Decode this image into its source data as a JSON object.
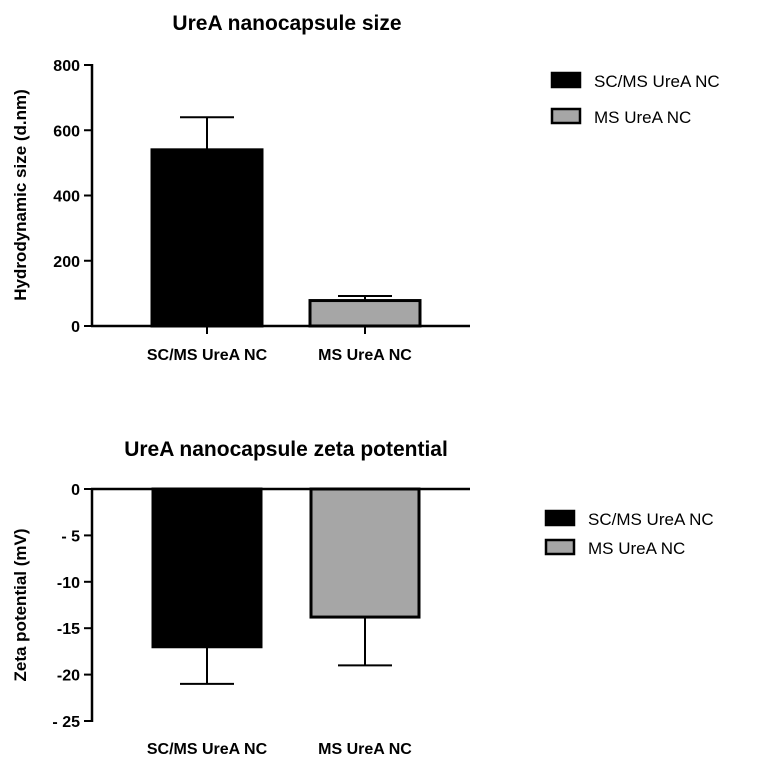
{
  "chart_data": [
    {
      "type": "bar",
      "title": "UreA nanocapsule size",
      "ylabel": "Hydrodynamic size (d.nm)",
      "xlabel": "",
      "categories": [
        "SC/MS UreA NC",
        "MS UreA NC"
      ],
      "values": [
        540,
        78
      ],
      "error_bars": [
        100,
        14
      ],
      "error_direction": "up",
      "colors": [
        "#000000",
        "#a6a6a6"
      ],
      "ylim": [
        0,
        800
      ],
      "yticks": [
        0,
        200,
        400,
        600,
        800
      ],
      "ytick_labels": [
        "0",
        "200",
        "400",
        "600",
        "800"
      ],
      "legend": [
        "SC/MS UreA NC",
        "MS UreA NC"
      ],
      "legend_position": "right",
      "grid": false
    },
    {
      "type": "bar",
      "title": "UreA nanocapsule zeta potential",
      "ylabel": "Zeta potential (mV)",
      "xlabel": "",
      "categories": [
        "SC/MS UreA NC",
        "MS UreA NC"
      ],
      "values": [
        -17,
        -13.8
      ],
      "error_bars": [
        4,
        5.2
      ],
      "error_direction": "down",
      "colors": [
        "#000000",
        "#a6a6a6"
      ],
      "ylim": [
        -25,
        0
      ],
      "yticks": [
        0,
        -5,
        -10,
        -15,
        -20,
        -25
      ],
      "ytick_labels": [
        "0",
        "- 5",
        "-10",
        "-15",
        "-20",
        "- 25"
      ],
      "legend": [
        "SC/MS UreA NC",
        "MS UreA NC"
      ],
      "legend_position": "right",
      "grid": false
    }
  ]
}
